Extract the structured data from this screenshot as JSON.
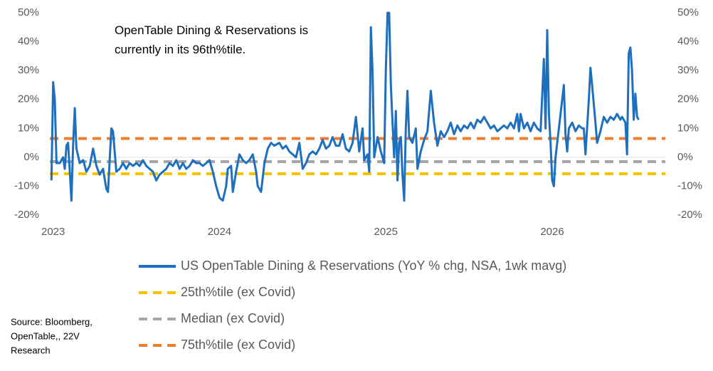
{
  "chart_data": {
    "type": "line",
    "annotation": "OpenTable Dining & Reservations is currently in its 96th%tile.",
    "source": [
      "Source: Bloomberg,",
      "OpenTable,, 22V",
      "Research"
    ],
    "xlim": [
      2022.98,
      2026.68
    ],
    "xticks": [
      2023,
      2024,
      2025,
      2026
    ],
    "ylim": [
      -20,
      50
    ],
    "yticks": [
      {
        "value": -20,
        "label": "-20%"
      },
      {
        "value": -10,
        "label": "-10%"
      },
      {
        "value": 0,
        "label": "0%"
      },
      {
        "value": 10,
        "label": "10%"
      },
      {
        "value": 20,
        "label": "20%"
      },
      {
        "value": 30,
        "label": "30%"
      },
      {
        "value": 40,
        "label": "40%"
      },
      {
        "value": 50,
        "label": "50%"
      }
    ],
    "y2lim": [
      -20,
      50
    ],
    "y2ticks": [
      {
        "value": -20,
        "label": "-20%"
      },
      {
        "value": -10,
        "label": "-10%"
      },
      {
        "value": 0,
        "label": "0%"
      },
      {
        "value": 10,
        "label": "10%"
      },
      {
        "value": 20,
        "label": "20%"
      },
      {
        "value": 30,
        "label": "30%"
      },
      {
        "value": 40,
        "label": "40%"
      },
      {
        "value": 50,
        "label": "50%"
      }
    ],
    "x": [
      2022.99,
      2023.0,
      2023.01,
      2023.02,
      2023.04,
      2023.06,
      2023.07,
      2023.08,
      2023.09,
      2023.1,
      2023.11,
      2023.12,
      2023.13,
      2023.14,
      2023.16,
      2023.18,
      2023.2,
      2023.22,
      2023.24,
      2023.26,
      2023.28,
      2023.3,
      2023.32,
      2023.33,
      2023.35,
      2023.36,
      2023.38,
      2023.4,
      2023.42,
      2023.44,
      2023.46,
      2023.48,
      2023.5,
      2023.52,
      2023.54,
      2023.56,
      2023.58,
      2023.6,
      2023.62,
      2023.64,
      2023.66,
      2023.68,
      2023.7,
      2023.72,
      2023.74,
      2023.76,
      2023.78,
      2023.8,
      2023.82,
      2023.84,
      2023.86,
      2023.88,
      2023.9,
      2023.92,
      2023.94,
      2023.96,
      2023.98,
      2024.0,
      2024.02,
      2024.04,
      2024.05,
      2024.07,
      2024.08,
      2024.1,
      2024.12,
      2024.14,
      2024.16,
      2024.18,
      2024.2,
      2024.22,
      2024.23,
      2024.25,
      2024.27,
      2024.29,
      2024.31,
      2024.33,
      2024.36,
      2024.38,
      2024.4,
      2024.42,
      2024.44,
      2024.46,
      2024.48,
      2024.5,
      2024.52,
      2024.54,
      2024.56,
      2024.58,
      2024.6,
      2024.62,
      2024.64,
      2024.66,
      2024.68,
      2024.7,
      2024.72,
      2024.74,
      2024.76,
      2024.78,
      2024.8,
      2024.82,
      2024.84,
      2024.86,
      2024.87,
      2024.89,
      2024.9,
      2024.91,
      2024.92,
      2024.93,
      2024.95,
      2024.97,
      2024.99,
      2025.0,
      2025.01,
      2025.02,
      2025.03,
      2025.04,
      2025.05,
      2025.06,
      2025.07,
      2025.08,
      2025.09,
      2025.1,
      2025.11,
      2025.12,
      2025.13,
      2025.14,
      2025.16,
      2025.18,
      2025.19,
      2025.21,
      2025.23,
      2025.25,
      2025.27,
      2025.29,
      2025.31,
      2025.33,
      2025.35,
      2025.37,
      2025.39,
      2025.41,
      2025.43,
      2025.45,
      2025.47,
      2025.49,
      2025.51,
      2025.53,
      2025.55,
      2025.57,
      2025.59,
      2025.61,
      2025.63,
      2025.65,
      2025.67,
      2025.69,
      2025.71,
      2025.73,
      2025.75,
      2025.77,
      2025.79,
      2025.8,
      2025.81,
      2025.83,
      2025.85,
      2025.87,
      2025.89,
      2025.91,
      2025.93,
      2025.95,
      2025.96,
      2025.97,
      2025.98,
      2025.99,
      2026.0,
      2026.01,
      2026.02,
      2026.04,
      2026.06,
      2026.07,
      2026.08,
      2026.09,
      2026.1,
      2026.12,
      2026.14,
      2026.16,
      2026.18,
      2026.19,
      2026.2,
      2026.22,
      2026.23,
      2026.24,
      2026.26,
      2026.27,
      2026.29,
      2026.31,
      2026.33,
      2026.35,
      2026.37,
      2026.39,
      2026.41,
      2026.42,
      2026.44,
      2026.45,
      2026.46,
      2026.47,
      2026.48,
      2026.49,
      2026.5,
      2026.51,
      2026.52
    ],
    "series": [
      {
        "name": "US OpenTable Dining & Reservations (YoY % chg, NSA, 1wk mavg)",
        "color": "#1f6fbf",
        "values": [
          -8,
          26,
          20,
          -2,
          -2,
          0,
          -4,
          4,
          5,
          -5,
          -15,
          4,
          17,
          3,
          -2,
          -1,
          -5,
          -3,
          3,
          -3,
          -6,
          -4,
          -11,
          -12,
          10,
          9,
          -5,
          -4,
          -2,
          -4,
          -2,
          -3,
          -2,
          -3,
          -1,
          -3,
          -4,
          -5,
          -8,
          -6,
          -5,
          -4,
          -2,
          -3,
          -1,
          -4,
          -2,
          -4,
          -3,
          -1,
          -2,
          -2,
          -3,
          -2,
          -1,
          -5,
          -10,
          -14,
          -15,
          -10,
          -4,
          -3,
          -12,
          -5,
          1,
          -1,
          -2,
          -1,
          1,
          -5,
          -10,
          -12,
          -2,
          3,
          5,
          4,
          5,
          3,
          4,
          2,
          1,
          0,
          5,
          -4,
          -2,
          1,
          2,
          1,
          3,
          6,
          3,
          4,
          7,
          4,
          4,
          8,
          3,
          2,
          5,
          14,
          2,
          10,
          -1,
          1,
          -5,
          45,
          30,
          0,
          7,
          2,
          -2,
          30,
          50,
          50,
          25,
          12,
          0,
          16,
          -8,
          5,
          7,
          -6,
          -15,
          10,
          23,
          7,
          5,
          10,
          -4,
          2,
          6,
          9,
          23,
          12,
          4,
          9,
          7,
          9,
          12,
          8,
          11,
          9,
          11,
          10,
          12,
          10,
          13,
          12,
          14,
          12,
          10,
          11,
          9,
          10,
          11,
          10,
          12,
          10,
          15,
          9,
          15,
          10,
          12,
          9,
          12,
          10,
          9,
          34,
          10,
          44,
          15,
          5,
          -8,
          -10,
          0,
          10,
          20,
          25,
          8,
          2,
          10,
          12,
          9,
          11,
          10,
          10,
          1,
          20,
          31,
          25,
          12,
          5,
          9,
          14,
          12,
          14,
          13,
          15,
          13,
          14,
          12,
          1,
          36,
          38,
          30,
          13,
          22,
          14,
          13
        ]
      }
    ],
    "reference_lines": [
      {
        "name": "25th%tile (ex Covid)",
        "color": "#f5c400",
        "value": -5.7
      },
      {
        "name": "Median (ex Covid)",
        "color": "#a5a5a5",
        "value": -1.5
      },
      {
        "name": "75th%tile (ex Covid)",
        "color": "#ed7d31",
        "value": 6.5
      }
    ]
  }
}
